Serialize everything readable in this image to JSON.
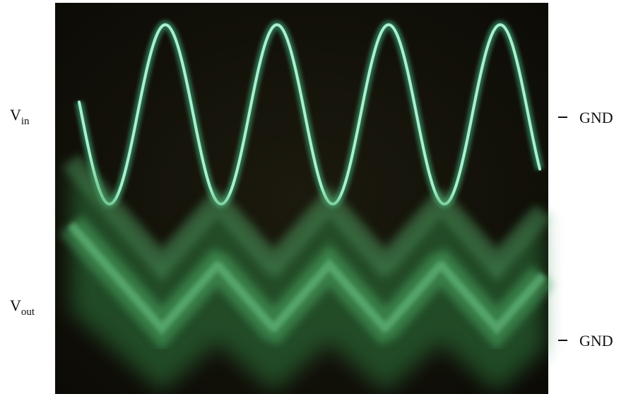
{
  "labels": [
    {
      "main": "V",
      "sub": "in"
    },
    {
      "main": "V",
      "sub": "out"
    }
  ],
  "markers": [
    "GND",
    "GND"
  ]
}
